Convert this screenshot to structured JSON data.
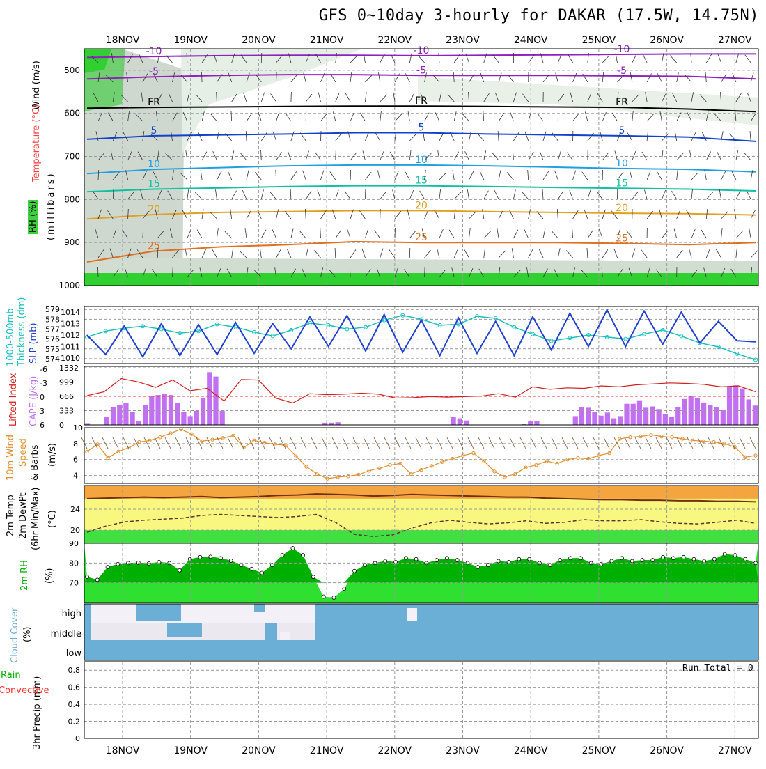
{
  "title": "GFS 0~10day 3-hourly for DAKAR (17.5W, 14.75N)",
  "date_labels": [
    "18NOV",
    "19NOV",
    "20NOV",
    "21NOV",
    "22NOV",
    "23NOV",
    "24NOV",
    "25NOV",
    "26NOV",
    "27NOV"
  ],
  "panel_labels": {
    "upper": {
      "wind": "Wind (m/s)",
      "temp": "Temperature (°C)",
      "rh": "RH (%)",
      "pressure": "(millibars)"
    },
    "thickness": {
      "a": "1000-500mb",
      "b": "Thickness (dm)",
      "c": "SLP (mb)"
    },
    "stability": {
      "a": "Lifted Index",
      "b": "CAPE (J/kg)"
    },
    "wind10": {
      "a": "10m Wind",
      "b": "Speed",
      "c": "& Barbs",
      "d": "(m/s)"
    },
    "temp2m": {
      "a": "2m Temp",
      "b": "2m DewPt",
      "c": "(6hr Min/Max)",
      "d": "(°C)"
    },
    "rh2m": {
      "a": "2m RH",
      "b": "(%)"
    },
    "cloud": {
      "a": "Cloud Cover",
      "b": "(%)"
    },
    "precip": {
      "a": "Total / Rain",
      "b": "Convective",
      "c": "3hr Precip (mm)",
      "run_total": "Run Total = 0"
    }
  },
  "colors": {
    "wind": "#000000",
    "temp": "#ff4040",
    "rh": "#00c000",
    "thickness": "#18c0c0",
    "slp": "#2040d0",
    "lifted": "#d02020",
    "cape": "#c070f0",
    "wind10": "#e09030",
    "tempfill": "#f5a540",
    "dewfill": "#f8f880",
    "greenfill": "#40e040",
    "rhfill": "#00b000",
    "cloud": "#6baed6",
    "precip_total": "#00c000",
    "precip_conv": "#ff3030"
  },
  "chart_data": [
    {
      "type": "heatmap",
      "panel": "upper-air time-height",
      "x": [
        "18NOV",
        "19NOV",
        "20NOV",
        "21NOV",
        "22NOV",
        "23NOV",
        "24NOV",
        "25NOV",
        "26NOV",
        "27NOV"
      ],
      "yticks": [
        "500",
        "600",
        "700",
        "800",
        "900",
        "1000"
      ],
      "ylim": [
        450,
        1000
      ],
      "temperature_contours": [
        {
          "label": "-10",
          "level_mb": [
            470,
            468,
            466,
            465,
            465,
            466,
            465,
            464,
            463,
            462,
            462
          ]
        },
        {
          "label": "-5",
          "level_mb": [
            520,
            515,
            512,
            510,
            510,
            512,
            512,
            512,
            513,
            514,
            520
          ]
        },
        {
          "label": "FR",
          "level_mb": [
            588,
            586,
            585,
            584,
            583,
            583,
            584,
            585,
            586,
            590,
            596
          ]
        },
        {
          "label": "5",
          "level_mb": [
            660,
            652,
            650,
            648,
            645,
            645,
            648,
            650,
            652,
            655,
            665
          ]
        },
        {
          "label": "10",
          "level_mb": [
            740,
            730,
            726,
            722,
            720,
            720,
            722,
            725,
            728,
            730,
            736
          ]
        },
        {
          "label": "15",
          "level_mb": [
            782,
            776,
            773,
            770,
            768,
            768,
            770,
            772,
            774,
            776,
            780
          ]
        },
        {
          "label": "20",
          "level_mb": [
            845,
            835,
            830,
            828,
            826,
            826,
            828,
            830,
            832,
            833,
            836
          ]
        },
        {
          "label": "25",
          "level_mb": [
            945,
            920,
            910,
            905,
            898,
            900,
            900,
            900,
            902,
            905,
            900
          ]
        }
      ]
    },
    {
      "type": "line",
      "panel": "thickness-slp",
      "yticks_left": [
        "574",
        "575",
        "576",
        "577",
        "578",
        "579"
      ],
      "yticks_right": [
        "1010",
        "1011",
        "1012",
        "1013",
        "1014"
      ],
      "series": [
        {
          "name": "1000-500mb Thickness (dm)",
          "axis": "left",
          "values": [
            576.2,
            576.8,
            577.1,
            577.3,
            577.0,
            576.6,
            576.8,
            577.5,
            577.2,
            576.7,
            576.3,
            576.9,
            577.6,
            577.4,
            577.0,
            577.2,
            577.9,
            578.4,
            578.0,
            577.4,
            577.5,
            578.3,
            578.1,
            577.2,
            576.5,
            575.8,
            576.1,
            576.4,
            576.2,
            576.0,
            576.5,
            576.9,
            576.3,
            575.6,
            575.2,
            574.5,
            573.9
          ]
        },
        {
          "name": "SLP (mb)",
          "axis": "right",
          "values": [
            1012.0,
            1010.3,
            1012.8,
            1010.1,
            1013.0,
            1010.2,
            1012.9,
            1010.3,
            1013.1,
            1010.4,
            1013.0,
            1010.8,
            1013.6,
            1011.0,
            1013.7,
            1010.6,
            1013.8,
            1010.5,
            1013.3,
            1010.2,
            1013.5,
            1010.4,
            1013.2,
            1010.2,
            1013.6,
            1010.7,
            1013.9,
            1011.0,
            1014.2,
            1011.0,
            1014.1,
            1011.2,
            1014.0,
            1011.3,
            1013.2,
            1011.5,
            1011.4
          ]
        }
      ]
    },
    {
      "type": "bar",
      "panel": "lifted-index-cape",
      "yticks_left": [
        "-6",
        "-3",
        "0",
        "3",
        "6"
      ],
      "yticks_right": [
        "0",
        "333",
        "666",
        "999",
        "1332"
      ],
      "series": [
        {
          "name": "CAPE (J/kg)",
          "kind": "bar",
          "values": [
            40,
            0,
            0,
            180,
            400,
            460,
            500,
            300,
            90,
            450,
            650,
            680,
            710,
            680,
            500,
            300,
            200,
            320,
            620,
            1200,
            1100,
            320,
            0,
            0,
            0,
            0,
            0,
            0,
            0,
            0,
            0,
            0,
            0,
            0,
            0,
            0,
            0,
            50,
            50,
            60,
            0,
            0,
            0,
            0,
            0,
            0,
            0,
            0,
            0,
            0,
            0,
            0,
            0,
            0,
            0,
            0,
            0,
            180,
            150,
            100,
            0,
            0,
            0,
            0,
            0,
            0,
            0,
            0,
            20,
            80,
            80,
            0,
            0,
            0,
            0,
            0,
            200,
            400,
            390,
            290,
            210,
            280,
            150,
            200,
            480,
            480,
            560,
            390,
            420,
            360,
            250,
            180,
            410,
            590,
            660,
            620,
            510,
            460,
            400,
            350,
            880,
            900,
            830,
            580,
            440
          ]
        },
        {
          "name": "Lifted Index",
          "kind": "line",
          "values": [
            0.0,
            -0.8,
            -3.5,
            -2.8,
            -1.7,
            -3.2,
            -1.0,
            -1.5,
            1.1,
            -3.3,
            -3.2,
            0.5,
            1.5,
            -0.4,
            -0.2,
            -0.3,
            -0.5,
            -0.3,
            0.5,
            0.4,
            0.2,
            0.3,
            0.2,
            0.1,
            -0.4,
            0.3,
            -1.8,
            -1.3,
            -1.6,
            -1.5,
            -2.0,
            -1.8,
            -2.2,
            -2.4,
            -2.6,
            -2.5,
            -2.3,
            -1.8,
            -2.0,
            -0.8
          ]
        }
      ]
    },
    {
      "type": "line",
      "panel": "10m-wind",
      "yticks": [
        "4",
        "6",
        "8",
        "10"
      ],
      "ylim": [
        3,
        10
      ],
      "series": [
        {
          "name": "10m Wind Speed (m/s)",
          "values": [
            7.0,
            7.9,
            6.2,
            7.0,
            7.5,
            8.2,
            8.4,
            8.8,
            9.3,
            9.8,
            9.2,
            8.3,
            8.5,
            8.7,
            9.0,
            7.5,
            8.4,
            8.1,
            7.9,
            7.8,
            6.4,
            5.1,
            4.2,
            3.6,
            3.8,
            3.9,
            4.1,
            4.6,
            4.9,
            5.3,
            5.5,
            4.2,
            4.7,
            5.2,
            5.7,
            6.1,
            6.5,
            6.8,
            5.8,
            4.5,
            3.8,
            4.2,
            5.0,
            5.3,
            5.8,
            5.5,
            6.0,
            6.2,
            6.1,
            6.5,
            6.8,
            8.6,
            8.8,
            8.9,
            9.1,
            8.9,
            8.8,
            8.6,
            8.4,
            8.3,
            8.2,
            8.0,
            7.6,
            6.3,
            6.5
          ]
        }
      ]
    },
    {
      "type": "area",
      "panel": "2m-temp-dewpoint",
      "yticks": [
        "20",
        "24"
      ],
      "ylim": [
        17.5,
        28.5
      ],
      "series": [
        {
          "name": "2m Temp (°C)",
          "values": [
            26.0,
            26.1,
            26.2,
            26.3,
            26.2,
            26.3,
            26.4,
            26.2,
            26.3,
            26.4,
            26.6,
            26.7,
            26.9,
            26.8,
            26.7,
            26.5,
            26.6,
            26.8,
            26.7,
            26.6,
            26.5,
            26.4,
            26.3,
            26.3,
            26.1,
            26.0,
            25.9,
            25.8,
            25.8,
            25.7,
            25.7,
            25.6,
            25.6,
            25.5,
            25.5,
            25.4
          ]
        },
        {
          "name": "2m DewPt (°C)",
          "values": [
            19.6,
            20.8,
            21.6,
            21.9,
            22.1,
            22.3,
            22.8,
            23.0,
            22.8,
            22.6,
            22.4,
            22.6,
            23.0,
            21.5,
            19.2,
            18.8,
            19.1,
            20.4,
            21.4,
            21.9,
            21.5,
            21.2,
            21.4,
            21.8,
            21.3,
            21.5,
            22.0,
            21.8,
            21.8,
            22.0,
            21.6,
            21.3,
            21.2,
            21.5,
            21.9,
            21.3
          ]
        }
      ]
    },
    {
      "type": "area",
      "panel": "2m-rh",
      "yticks": [
        "70",
        "80",
        "90"
      ],
      "ylim": [
        60,
        90
      ],
      "series": [
        {
          "name": "2m RH (%)",
          "values": [
            73.0,
            71.5,
            78.0,
            79.5,
            80.0,
            80.2,
            79.8,
            80.5,
            80.0,
            76.3,
            82.0,
            83.0,
            83.2,
            82.5,
            81.2,
            79.0,
            77.0,
            75.0,
            79.0,
            84.0,
            87.5,
            84.0,
            73.0,
            63.0,
            62.5,
            67.0,
            76.0,
            79.0,
            80.0,
            81.0,
            80.5,
            82.5,
            82.0,
            80.0,
            81.5,
            82.5,
            81.5,
            80.0,
            78.0,
            79.0,
            81.0,
            80.5,
            82.0,
            82.0,
            80.0,
            79.0,
            81.5,
            82.5,
            82.5,
            80.0,
            79.5,
            81.0,
            82.5,
            81.0,
            81.5,
            81.5,
            83.0,
            82.5,
            83.0,
            82.0,
            81.0,
            82.0,
            84.5,
            84.0,
            82.0,
            80.0
          ]
        }
      ]
    },
    {
      "type": "heatmap",
      "panel": "cloud-cover",
      "layers": [
        "high",
        "middle",
        "low"
      ],
      "note": "low layer fully overcast throughout; high/middle clear early then overcast from ~21NOV"
    },
    {
      "type": "bar",
      "panel": "3hr-precip",
      "yticks": [
        "0",
        "0.2",
        "0.4",
        "0.6",
        "0.8"
      ],
      "ylim": [
        0,
        0.9
      ],
      "series": [
        {
          "name": "Total / Rain",
          "values": []
        },
        {
          "name": "Convective",
          "values": []
        }
      ]
    }
  ]
}
